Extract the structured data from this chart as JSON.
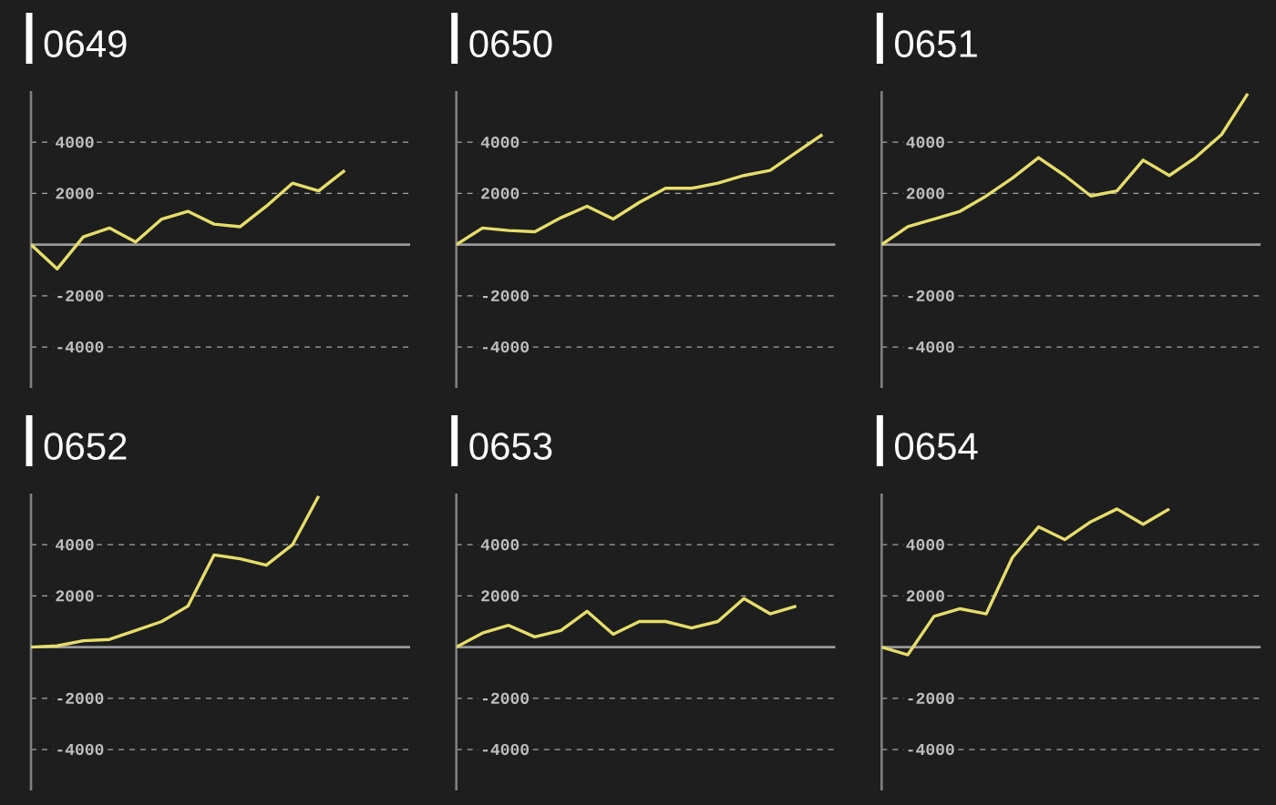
{
  "chart_data": [
    {
      "type": "line",
      "title": "0649",
      "categories": [
        null,
        null,
        null,
        null,
        null,
        null,
        null,
        null,
        null,
        null,
        null,
        null,
        null,
        null,
        null
      ],
      "values": [
        0,
        -950,
        300,
        650,
        100,
        1000,
        1300,
        800,
        700,
        1500,
        2400,
        2100,
        2900,
        null,
        null
      ],
      "color": "#e6dd6b",
      "ylim": [
        -5600,
        6000
      ],
      "yticks": [
        -4000,
        -2000,
        2000,
        4000
      ],
      "grid": "y",
      "tick_labels": "y",
      "ref_lines": [
        {
          "axis": "y",
          "value": 0,
          "color": "#9a9a9a"
        }
      ]
    },
    {
      "type": "line",
      "title": "0650",
      "categories": [
        null,
        null,
        null,
        null,
        null,
        null,
        null,
        null,
        null,
        null,
        null,
        null,
        null,
        null,
        null
      ],
      "values": [
        0,
        650,
        550,
        500,
        1050,
        1500,
        1000,
        1650,
        2200,
        2200,
        2400,
        2700,
        2900,
        3600,
        4300
      ],
      "color": "#e6dd6b",
      "ylim": [
        -5600,
        6000
      ],
      "yticks": [
        -4000,
        -2000,
        2000,
        4000
      ],
      "grid": "y",
      "tick_labels": "y",
      "ref_lines": [
        {
          "axis": "y",
          "value": 0,
          "color": "#9a9a9a"
        }
      ]
    },
    {
      "type": "line",
      "title": "0651",
      "categories": [
        null,
        null,
        null,
        null,
        null,
        null,
        null,
        null,
        null,
        null,
        null,
        null,
        null,
        null,
        null
      ],
      "values": [
        0,
        700,
        1000,
        1300,
        1900,
        2600,
        3400,
        2700,
        1900,
        2100,
        3300,
        2700,
        3400,
        4300,
        5900
      ],
      "color": "#e6dd6b",
      "ylim": [
        -5600,
        6000
      ],
      "yticks": [
        -4000,
        -2000,
        2000,
        4000
      ],
      "grid": "y",
      "tick_labels": "y",
      "ref_lines": [
        {
          "axis": "y",
          "value": 0,
          "color": "#9a9a9a"
        }
      ]
    },
    {
      "type": "line",
      "title": "0652",
      "categories": [
        null,
        null,
        null,
        null,
        null,
        null,
        null,
        null,
        null,
        null,
        null,
        null,
        null,
        null,
        null
      ],
      "values": [
        0,
        50,
        250,
        300,
        650,
        1000,
        1600,
        3600,
        3450,
        3200,
        4000,
        5900,
        null,
        null,
        null
      ],
      "color": "#e6dd6b",
      "ylim": [
        -5600,
        6000
      ],
      "yticks": [
        -4000,
        -2000,
        2000,
        4000
      ],
      "grid": "y",
      "tick_labels": "y",
      "ref_lines": [
        {
          "axis": "y",
          "value": 0,
          "color": "#9a9a9a"
        }
      ]
    },
    {
      "type": "line",
      "title": "0653",
      "categories": [
        null,
        null,
        null,
        null,
        null,
        null,
        null,
        null,
        null,
        null,
        null,
        null,
        null,
        null,
        null
      ],
      "values": [
        0,
        550,
        850,
        400,
        650,
        1400,
        500,
        1000,
        1000,
        750,
        1000,
        1900,
        1300,
        1600,
        null
      ],
      "color": "#e6dd6b",
      "ylim": [
        -5600,
        6000
      ],
      "yticks": [
        -4000,
        -2000,
        2000,
        4000
      ],
      "grid": "y",
      "tick_labels": "y",
      "ref_lines": [
        {
          "axis": "y",
          "value": 0,
          "color": "#9a9a9a"
        }
      ]
    },
    {
      "type": "line",
      "title": "0654",
      "categories": [
        null,
        null,
        null,
        null,
        null,
        null,
        null,
        null,
        null,
        null,
        null,
        null,
        null,
        null,
        null
      ],
      "values": [
        0,
        -300,
        1200,
        1500,
        1300,
        3500,
        4700,
        4200,
        4900,
        5400,
        4800,
        5400,
        null,
        null,
        null
      ],
      "color": "#e6dd6b",
      "ylim": [
        -5600,
        6000
      ],
      "yticks": [
        -4000,
        -2000,
        2000,
        4000
      ],
      "grid": "y",
      "tick_labels": "y",
      "ref_lines": [
        {
          "axis": "y",
          "value": 0,
          "color": "#9a9a9a"
        }
      ]
    }
  ]
}
